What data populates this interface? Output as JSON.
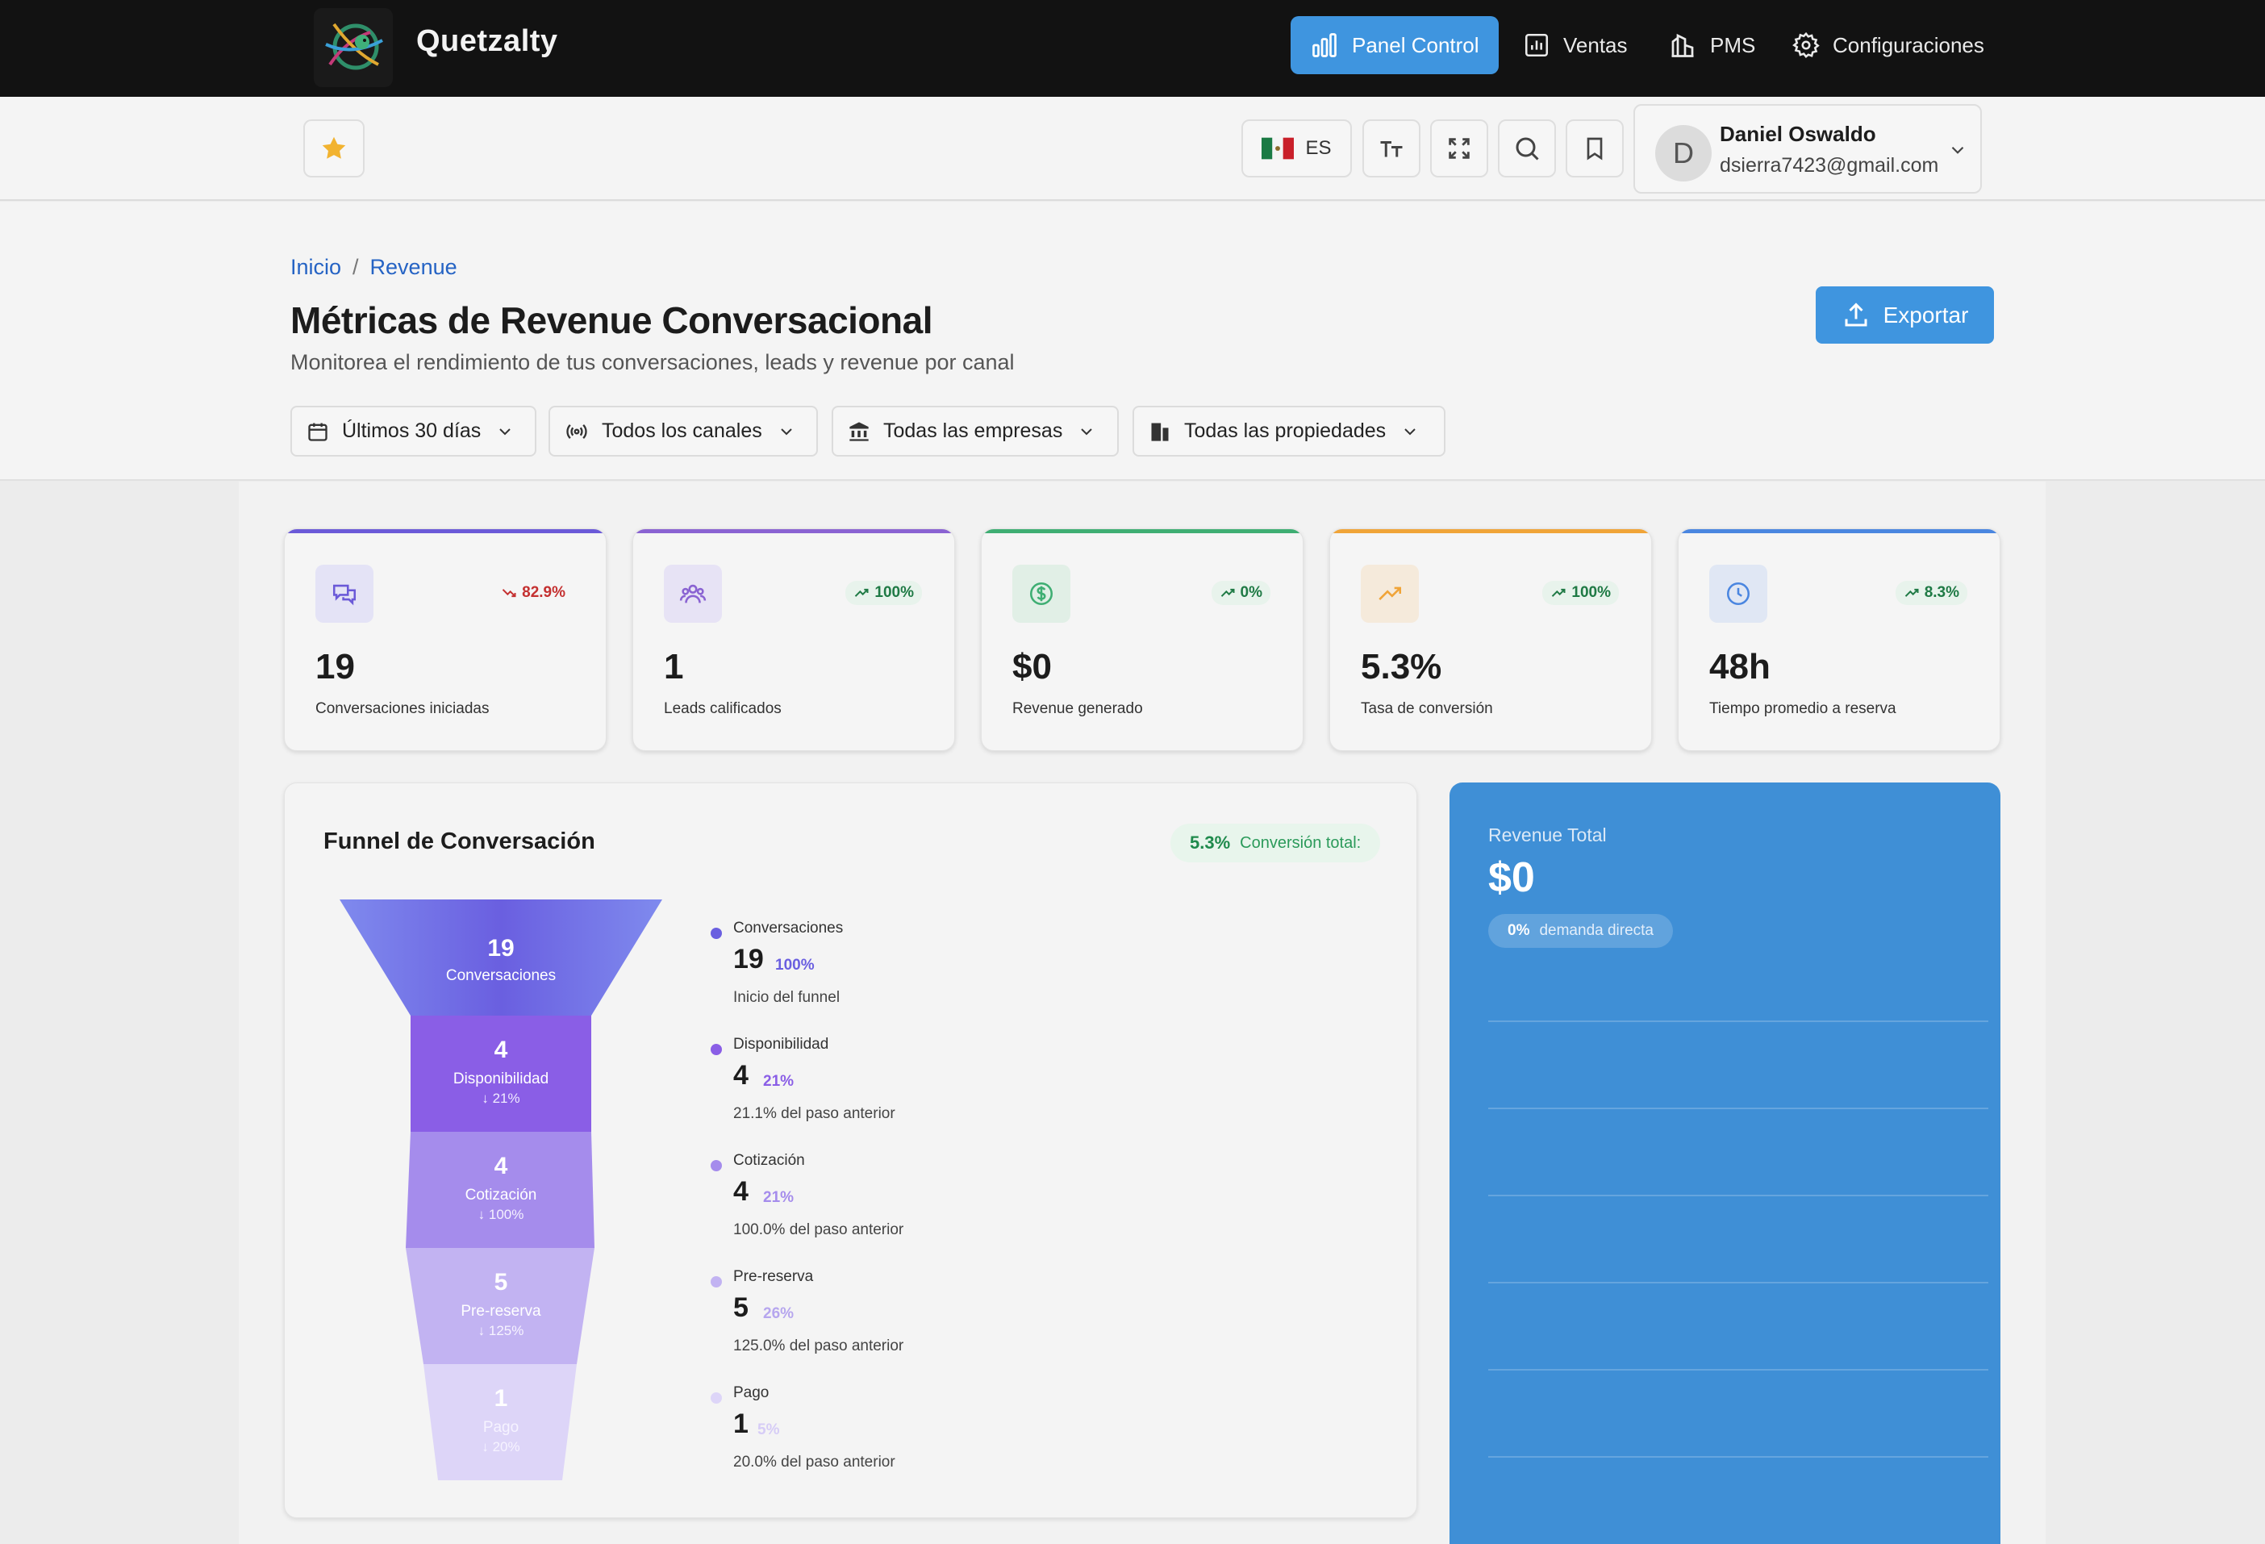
{
  "app": {
    "brand": "Quetzalty"
  },
  "nav": {
    "items": [
      {
        "label": "Panel Control",
        "icon": "bar-chart-icon",
        "active": true
      },
      {
        "label": "Ventas",
        "icon": "sales-chart-icon",
        "active": false
      },
      {
        "label": "PMS",
        "icon": "building-chart-icon",
        "active": false
      },
      {
        "label": "Configuraciones",
        "icon": "gear-icon",
        "active": false
      }
    ]
  },
  "toolbar": {
    "language": "ES",
    "user": {
      "initial": "D",
      "name": "Daniel Oswaldo",
      "email": "dsierra7423@gmail.com"
    }
  },
  "header": {
    "breadcrumb": [
      "Inicio",
      "Revenue"
    ],
    "title": "Métricas de Revenue Conversacional",
    "subtitle": "Monitorea el rendimiento de tus conversaciones, leads y revenue por canal",
    "export_label": "Exportar",
    "filters": [
      {
        "label": "Últimos 30 días",
        "icon": "calendar-icon"
      },
      {
        "label": "Todos los canales",
        "icon": "broadcast-icon"
      },
      {
        "label": "Todas las empresas",
        "icon": "bank-icon"
      },
      {
        "label": "Todas las propiedades",
        "icon": "building-icon"
      }
    ]
  },
  "stats": [
    {
      "value": "19",
      "label": "Conversaciones iniciadas",
      "change": "82.9%",
      "trend": "down",
      "icon": "chat-icon",
      "color": "#6b5ad8"
    },
    {
      "value": "1",
      "label": "Leads calificados",
      "change": "100%",
      "trend": "up",
      "icon": "users-icon",
      "color": "#8a63d2"
    },
    {
      "value": "$0",
      "label": "Revenue generado",
      "change": "0%",
      "trend": "up",
      "icon": "dollar-icon",
      "color": "#3fae73"
    },
    {
      "value": "5.3%",
      "label": "Tasa de conversión",
      "change": "100%",
      "trend": "up",
      "icon": "trend-up-icon",
      "color": "#f0a438"
    },
    {
      "value": "48h",
      "label": "Tiempo promedio a reserva",
      "change": "8.3%",
      "trend": "up",
      "icon": "clock-icon",
      "color": "#4a86e0"
    }
  ],
  "funnel": {
    "title": "Funnel de Conversación",
    "conversion_value": "5.3%",
    "conversion_label": "Conversión total:",
    "stages": [
      {
        "name": "Conversaciones",
        "value": "19",
        "pct": "100%",
        "step": "",
        "note": "Inicio del funnel",
        "color": "#6a5fe0"
      },
      {
        "name": "Disponibilidad",
        "value": "4",
        "pct": "21%",
        "step": "↓ 21%",
        "note": "21.1% del paso anterior",
        "color": "#8a5ee6"
      },
      {
        "name": "Cotización",
        "value": "4",
        "pct": "21%",
        "step": "↓ 100%",
        "note": "100.0% del paso anterior",
        "color": "#a58cec"
      },
      {
        "name": "Pre-reserva",
        "value": "5",
        "pct": "26%",
        "step": "↓ 125%",
        "note": "125.0% del paso anterior",
        "color": "#c2b3f2"
      },
      {
        "name": "Pago",
        "value": "1",
        "pct": "5%",
        "step": "↓ 20%",
        "note": "20.0% del paso anterior",
        "color": "#ddd5f8"
      }
    ]
  },
  "revenue": {
    "label": "Revenue Total",
    "value": "$0",
    "direct_pct": "0%",
    "direct_label": "demanda directa"
  }
}
